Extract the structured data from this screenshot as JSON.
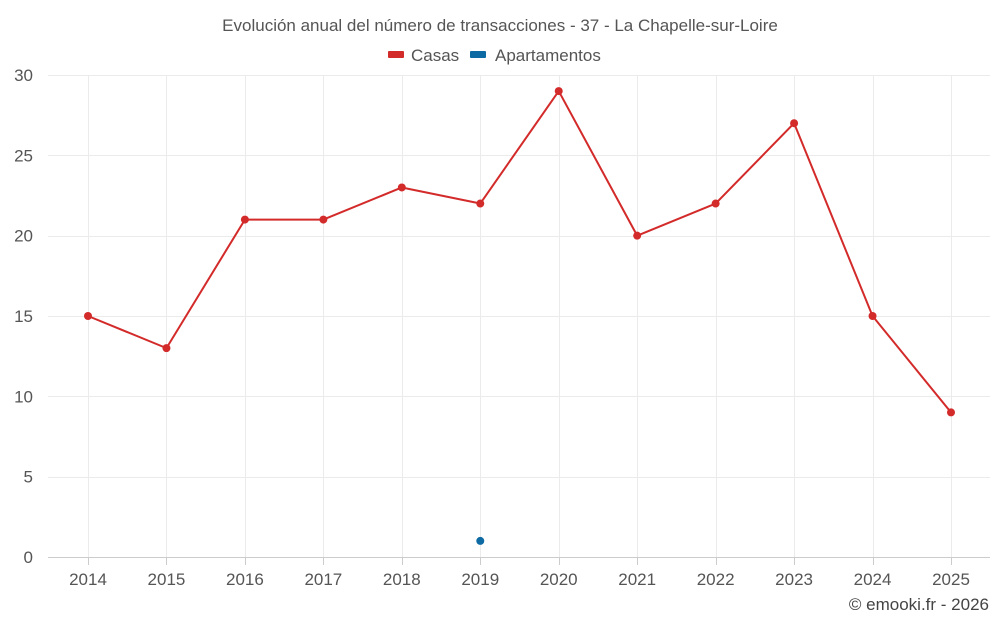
{
  "chart_data": {
    "type": "line",
    "title": "Evolución anual del número de transacciones - 37 - La Chapelle-sur-Loire",
    "categories": [
      "2014",
      "2015",
      "2016",
      "2017",
      "2018",
      "2019",
      "2020",
      "2021",
      "2022",
      "2023",
      "2024",
      "2025"
    ],
    "series": [
      {
        "name": "Casas",
        "color": "#d32a2a",
        "values": [
          15,
          13,
          21,
          21,
          23,
          22,
          29,
          20,
          22,
          27,
          15,
          9
        ]
      },
      {
        "name": "Apartamentos",
        "color": "#0e6aa3",
        "values": [
          null,
          null,
          null,
          null,
          null,
          1,
          null,
          null,
          null,
          null,
          null,
          null
        ]
      }
    ],
    "ylim": [
      0,
      30
    ],
    "yticks": [
      "0",
      "5",
      "10",
      "15",
      "20",
      "25",
      "30"
    ],
    "grid": true,
    "legend_position": "top-center",
    "xlabel": "",
    "ylabel": ""
  },
  "credit": "© emooki.fr - 2026"
}
